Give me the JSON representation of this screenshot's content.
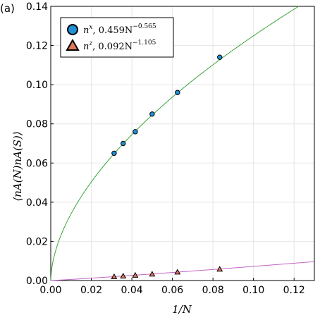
{
  "chart_data": {
    "type": "scatter",
    "panel_label": "(a)",
    "xlabel": "1/N",
    "ylabel": "⟨nA(N)nA(S)⟩",
    "xlim": [
      0.0,
      0.13
    ],
    "ylim": [
      0.0,
      0.14
    ],
    "x_ticks": [
      0.0,
      0.02,
      0.04,
      0.06,
      0.08,
      0.1,
      0.12
    ],
    "x_tick_labels": [
      "0.00",
      "0.02",
      "0.04",
      "0.06",
      "0.08",
      "0.10",
      "0.12"
    ],
    "y_ticks": [
      0.0,
      0.02,
      0.04,
      0.06,
      0.08,
      0.1,
      0.12,
      0.14
    ],
    "y_tick_labels": [
      "0.00",
      "0.02",
      "0.04",
      "0.06",
      "0.08",
      "0.10",
      "0.12",
      "0.14"
    ],
    "grid": true,
    "legend_position": "top-left",
    "series": [
      {
        "name": "n^x, 0.459N^-0.565",
        "legend_base": "n",
        "legend_base_sup": "x",
        "legend_coef": ", 0.459N",
        "legend_exp": "−0.565",
        "marker": "circle",
        "color": "#1f8fd6",
        "fit_color": "#3aa53a",
        "fit_coef": 0.459,
        "fit_exp": 0.565,
        "x": [
          0.03125,
          0.03571,
          0.04167,
          0.05,
          0.0625,
          0.08333
        ],
        "y": [
          0.065,
          0.07,
          0.076,
          0.085,
          0.096,
          0.114
        ]
      },
      {
        "name": "n^z, 0.092N^-1.105",
        "legend_base": "n",
        "legend_base_sup": "z",
        "legend_coef": ", 0.092N",
        "legend_exp": "−1.105",
        "marker": "triangle",
        "color": "#e2765a",
        "fit_color": "#c266c9",
        "fit_coef": 0.092,
        "fit_exp": 1.105,
        "x": [
          0.03125,
          0.03571,
          0.04167,
          0.05,
          0.0625,
          0.08333
        ],
        "y": [
          0.002,
          0.0023,
          0.0027,
          0.0033,
          0.0043,
          0.0058
        ]
      }
    ]
  }
}
